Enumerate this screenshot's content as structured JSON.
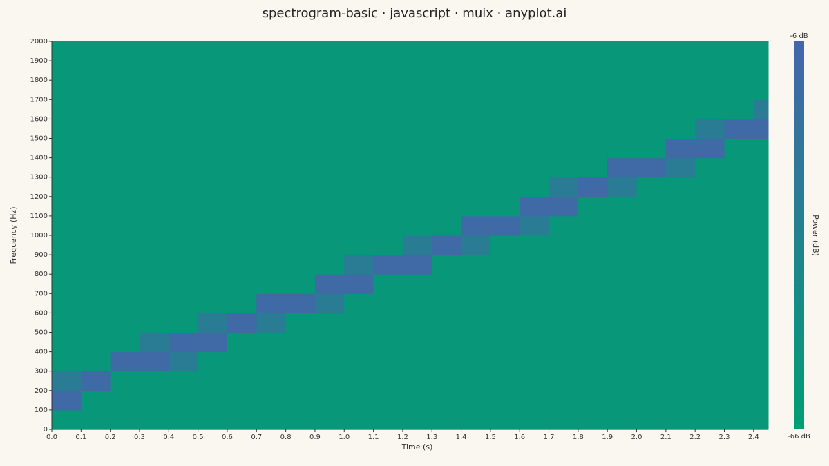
{
  "chart_data": {
    "type": "heatmap",
    "title": "spectrogram-basic · javascript · muix · anyplot.ai",
    "xlabel": "Time (s)",
    "ylabel": "Frequency (Hz)",
    "colorbar_label": "Power (dB)",
    "x_edges": [
      0,
      0.1,
      0.2,
      0.3,
      0.4,
      0.5,
      0.6,
      0.7,
      0.8,
      0.9,
      1.0,
      1.1,
      1.2,
      1.3,
      1.4,
      1.5,
      1.6,
      1.7,
      1.8,
      1.9,
      2.0,
      2.1,
      2.2,
      2.3,
      2.4,
      2.45
    ],
    "y_edges": [
      0,
      100,
      200,
      300,
      400,
      500,
      600,
      700,
      800,
      900,
      1000,
      1100,
      1200,
      1300,
      1400,
      1500,
      1600,
      1700,
      1800,
      1900,
      2000
    ],
    "values": [
      [
        -58,
        -58,
        -58,
        -58,
        -58,
        -58,
        -58,
        -58,
        -58,
        -58,
        -58,
        -58,
        -58,
        -58,
        -58,
        -58,
        -58,
        -58,
        -58,
        -58,
        -58,
        -58,
        -58,
        -58,
        -58
      ],
      [
        -10,
        -58,
        -58,
        -58,
        -58,
        -58,
        -58,
        -58,
        -58,
        -58,
        -58,
        -58,
        -58,
        -58,
        -58,
        -58,
        -58,
        -58,
        -58,
        -58,
        -58,
        -58,
        -58,
        -58,
        -58
      ],
      [
        -30,
        -10,
        -58,
        -58,
        -58,
        -58,
        -58,
        -58,
        -58,
        -58,
        -58,
        -58,
        -58,
        -58,
        -58,
        -58,
        -58,
        -58,
        -58,
        -58,
        -58,
        -58,
        -58,
        -58,
        -58
      ],
      [
        -58,
        -58,
        -10,
        -10,
        -30,
        -58,
        -58,
        -58,
        -58,
        -58,
        -58,
        -58,
        -58,
        -58,
        -58,
        -58,
        -58,
        -58,
        -58,
        -58,
        -58,
        -58,
        -58,
        -58,
        -58
      ],
      [
        -58,
        -58,
        -58,
        -30,
        -10,
        -10,
        -58,
        -58,
        -58,
        -58,
        -58,
        -58,
        -58,
        -58,
        -58,
        -58,
        -58,
        -58,
        -58,
        -58,
        -58,
        -58,
        -58,
        -58,
        -58
      ],
      [
        -58,
        -58,
        -58,
        -58,
        -58,
        -30,
        -10,
        -30,
        -58,
        -58,
        -58,
        -58,
        -58,
        -58,
        -58,
        -58,
        -58,
        -58,
        -58,
        -58,
        -58,
        -58,
        -58,
        -58,
        -58
      ],
      [
        -58,
        -58,
        -58,
        -58,
        -58,
        -58,
        -58,
        -10,
        -10,
        -30,
        -58,
        -58,
        -58,
        -58,
        -58,
        -58,
        -58,
        -58,
        -58,
        -58,
        -58,
        -58,
        -58,
        -58,
        -58
      ],
      [
        -58,
        -58,
        -58,
        -58,
        -58,
        -58,
        -58,
        -58,
        -58,
        -10,
        -10,
        -58,
        -58,
        -58,
        -58,
        -58,
        -58,
        -58,
        -58,
        -58,
        -58,
        -58,
        -58,
        -58,
        -58
      ],
      [
        -58,
        -58,
        -58,
        -58,
        -58,
        -58,
        -58,
        -58,
        -58,
        -58,
        -30,
        -10,
        -10,
        -58,
        -58,
        -58,
        -58,
        -58,
        -58,
        -58,
        -58,
        -58,
        -58,
        -58,
        -58
      ],
      [
        -58,
        -58,
        -58,
        -58,
        -58,
        -58,
        -58,
        -58,
        -58,
        -58,
        -58,
        -58,
        -30,
        -10,
        -30,
        -58,
        -58,
        -58,
        -58,
        -58,
        -58,
        -58,
        -58,
        -58,
        -58
      ],
      [
        -58,
        -58,
        -58,
        -58,
        -58,
        -58,
        -58,
        -58,
        -58,
        -58,
        -58,
        -58,
        -58,
        -58,
        -10,
        -10,
        -30,
        -58,
        -58,
        -58,
        -58,
        -58,
        -58,
        -58,
        -58
      ],
      [
        -58,
        -58,
        -58,
        -58,
        -58,
        -58,
        -58,
        -58,
        -58,
        -58,
        -58,
        -58,
        -58,
        -58,
        -58,
        -58,
        -10,
        -10,
        -58,
        -58,
        -58,
        -58,
        -58,
        -58,
        -58
      ],
      [
        -58,
        -58,
        -58,
        -58,
        -58,
        -58,
        -58,
        -58,
        -58,
        -58,
        -58,
        -58,
        -58,
        -58,
        -58,
        -58,
        -58,
        -30,
        -10,
        -30,
        -58,
        -58,
        -58,
        -58,
        -58
      ],
      [
        -58,
        -58,
        -58,
        -58,
        -58,
        -58,
        -58,
        -58,
        -58,
        -58,
        -58,
        -58,
        -58,
        -58,
        -58,
        -58,
        -58,
        -58,
        -58,
        -10,
        -10,
        -30,
        -58,
        -58,
        -58
      ],
      [
        -58,
        -58,
        -58,
        -58,
        -58,
        -58,
        -58,
        -58,
        -58,
        -58,
        -58,
        -58,
        -58,
        -58,
        -58,
        -58,
        -58,
        -58,
        -58,
        -58,
        -58,
        -10,
        -10,
        -58,
        -58
      ],
      [
        -58,
        -58,
        -58,
        -58,
        -58,
        -58,
        -58,
        -58,
        -58,
        -58,
        -58,
        -58,
        -58,
        -58,
        -58,
        -58,
        -58,
        -58,
        -58,
        -58,
        -58,
        -58,
        -30,
        -10,
        -10
      ],
      [
        -58,
        -58,
        -58,
        -58,
        -58,
        -58,
        -58,
        -58,
        -58,
        -58,
        -58,
        -58,
        -58,
        -58,
        -58,
        -58,
        -58,
        -58,
        -58,
        -58,
        -58,
        -58,
        -58,
        -58,
        -30
      ],
      [
        -58,
        -58,
        -58,
        -58,
        -58,
        -58,
        -58,
        -58,
        -58,
        -58,
        -58,
        -58,
        -58,
        -58,
        -58,
        -58,
        -58,
        -58,
        -58,
        -58,
        -58,
        -58,
        -58,
        -58,
        -58
      ],
      [
        -58,
        -58,
        -58,
        -58,
        -58,
        -58,
        -58,
        -58,
        -58,
        -58,
        -58,
        -58,
        -58,
        -58,
        -58,
        -58,
        -58,
        -58,
        -58,
        -58,
        -58,
        -58,
        -58,
        -58,
        -58
      ],
      [
        -58,
        -58,
        -58,
        -58,
        -58,
        -58,
        -58,
        -58,
        -58,
        -58,
        -58,
        -58,
        -58,
        -58,
        -58,
        -58,
        -58,
        -58,
        -58,
        -58,
        -58,
        -58,
        -58,
        -58,
        -58
      ]
    ],
    "xlim": [
      0,
      2.45
    ],
    "xticks": [
      {
        "value": 0,
        "label": "0.0"
      },
      0.1,
      0.2,
      0.3,
      0.4,
      0.5,
      0.6,
      0.7,
      0.8,
      0.9,
      {
        "value": 1,
        "label": "1.0"
      },
      1.1,
      1.2,
      1.3,
      1.4,
      1.5,
      1.6,
      1.7,
      1.8,
      1.9,
      {
        "value": 2,
        "label": "2.0"
      },
      2.1,
      2.2,
      2.3,
      2.4
    ],
    "ylim": [
      0,
      2000
    ],
    "yticks": [
      0,
      100,
      200,
      300,
      400,
      500,
      600,
      700,
      800,
      900,
      1000,
      1100,
      1200,
      1300,
      1400,
      1500,
      1600,
      1700,
      1800,
      1900,
      2000
    ],
    "zlim": [
      -66,
      -6
    ],
    "zticks": [
      {
        "value": -6,
        "label": "-6 dB"
      },
      {
        "value": -66,
        "label": "-66 dB"
      }
    ],
    "colormap": [
      "#009e73",
      "#4466aa"
    ]
  }
}
